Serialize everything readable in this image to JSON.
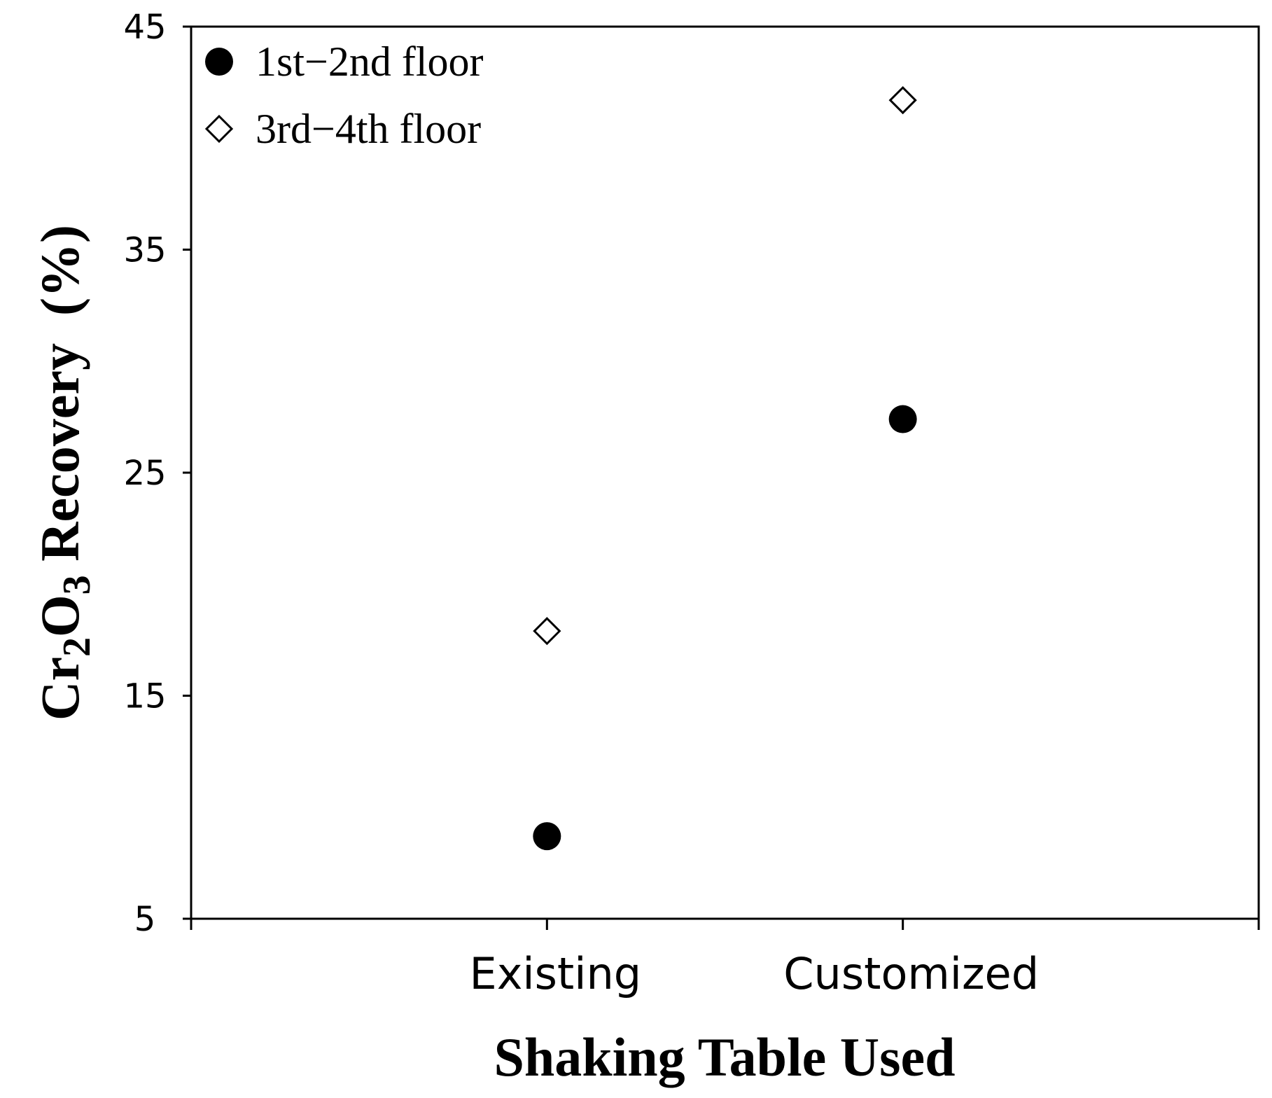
{
  "chart_data": {
    "type": "scatter",
    "xlabel": "Shaking Table Used",
    "ylabel": {
      "prefix": "Cr",
      "sub1": "2",
      "mid": "O",
      "sub2": "3",
      "suffix": " Recovery  (%)"
    },
    "categories": [
      "Existing",
      "Customized"
    ],
    "ylim": [
      5,
      45
    ],
    "yticks": [
      5,
      15,
      25,
      35,
      45
    ],
    "grid": false,
    "legend_position": "top-left",
    "series": [
      {
        "name": "1st−2nd floor",
        "marker": "filled-circle",
        "color": "#000000",
        "values": [
          8.7,
          27.4
        ]
      },
      {
        "name": "3rd−4th floor",
        "marker": "open-diamond",
        "color": "#000000",
        "values": [
          17.9,
          41.7
        ]
      }
    ]
  }
}
